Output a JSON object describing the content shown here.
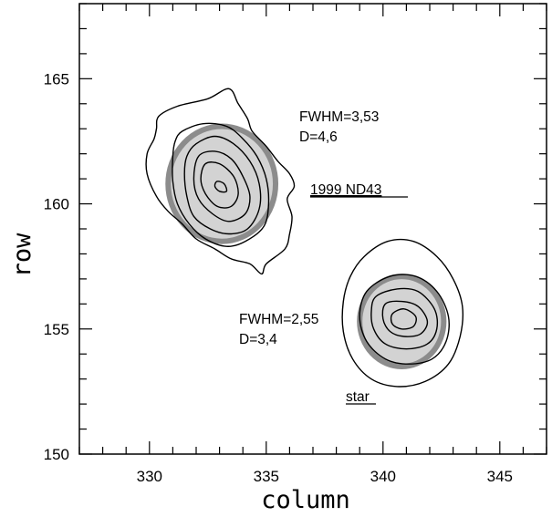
{
  "chart_data": {
    "type": "contour",
    "title": "",
    "xlabel": "column",
    "ylabel": "row",
    "xlim": [
      327,
      347
    ],
    "ylim": [
      150,
      168
    ],
    "x_ticks": [
      330,
      335,
      340,
      345
    ],
    "y_ticks": [
      150,
      155,
      160,
      165
    ],
    "x_tick_labels": [
      "330",
      "335",
      "340",
      "345"
    ],
    "y_tick_labels": [
      "150",
      "155",
      "160",
      "165"
    ],
    "grid": false,
    "sources": [
      {
        "label": "1999 ND43",
        "center": [
          333.1,
          160.8
        ],
        "aperture_radius": 2.3,
        "fwhm_text": "FWHM=3,53",
        "d_text": "D=4,6",
        "contours": [
          [
            [
              330.4,
              163.5
            ],
            [
              331.2,
              163.9
            ],
            [
              332.5,
              164.2
            ],
            [
              333.4,
              164.6
            ],
            [
              333.8,
              164.0
            ],
            [
              334.2,
              163.4
            ],
            [
              334.4,
              162.9
            ],
            [
              335.0,
              162.3
            ],
            [
              335.5,
              161.7
            ],
            [
              336.0,
              161.2
            ],
            [
              336.2,
              160.7
            ],
            [
              335.9,
              160.2
            ],
            [
              336.1,
              159.5
            ],
            [
              336.0,
              158.8
            ],
            [
              335.8,
              158.2
            ],
            [
              335.0,
              157.6
            ],
            [
              334.8,
              157.2
            ],
            [
              334.3,
              157.6
            ],
            [
              333.5,
              157.8
            ],
            [
              332.8,
              158.2
            ],
            [
              332.0,
              158.6
            ],
            [
              331.4,
              159.2
            ],
            [
              330.8,
              159.7
            ],
            [
              330.3,
              160.3
            ],
            [
              329.9,
              161.2
            ],
            [
              329.9,
              162.0
            ],
            [
              330.2,
              162.6
            ],
            [
              330.3,
              163.0
            ]
          ],
          [
            [
              331.4,
              162.9
            ],
            [
              332.3,
              163.2
            ],
            [
              333.3,
              163.1
            ],
            [
              334.0,
              162.6
            ],
            [
              334.6,
              161.9
            ],
            [
              335.0,
              161.0
            ],
            [
              335.1,
              160.0
            ],
            [
              334.9,
              159.1
            ],
            [
              334.1,
              158.5
            ],
            [
              333.3,
              158.3
            ],
            [
              332.4,
              158.6
            ],
            [
              331.7,
              159.2
            ],
            [
              331.2,
              160.0
            ],
            [
              331.0,
              160.9
            ],
            [
              331.0,
              161.9
            ],
            [
              331.1,
              162.5
            ]
          ],
          [
            [
              332.0,
              162.4
            ],
            [
              332.8,
              162.7
            ],
            [
              333.6,
              162.4
            ],
            [
              334.3,
              161.7
            ],
            [
              334.7,
              160.8
            ],
            [
              334.7,
              159.8
            ],
            [
              334.2,
              159.0
            ],
            [
              333.4,
              158.8
            ],
            [
              332.6,
              159.0
            ],
            [
              331.9,
              159.5
            ],
            [
              331.6,
              160.3
            ],
            [
              331.5,
              161.2
            ],
            [
              331.6,
              161.9
            ]
          ],
          [
            [
              332.1,
              161.9
            ],
            [
              332.8,
              162.1
            ],
            [
              333.5,
              161.8
            ],
            [
              334.0,
              161.1
            ],
            [
              334.3,
              160.3
            ],
            [
              334.1,
              159.6
            ],
            [
              333.4,
              159.3
            ],
            [
              332.7,
              159.6
            ],
            [
              332.1,
              160.2
            ],
            [
              331.9,
              161.0
            ]
          ],
          [
            [
              332.4,
              161.6
            ],
            [
              333.0,
              161.6
            ],
            [
              333.6,
              161.1
            ],
            [
              333.8,
              160.4
            ],
            [
              333.5,
              159.9
            ],
            [
              332.9,
              159.9
            ],
            [
              332.4,
              160.4
            ],
            [
              332.2,
              161.0
            ]
          ],
          [
            [
              332.9,
              160.9
            ],
            [
              333.2,
              160.8
            ],
            [
              333.3,
              160.5
            ],
            [
              333.0,
              160.5
            ],
            [
              332.8,
              160.7
            ]
          ]
        ]
      },
      {
        "label": "star",
        "center": [
          340.8,
          155.3
        ],
        "aperture_radius": 1.8,
        "fwhm_text": "FWHM=2,55",
        "d_text": "D=3,4",
        "contours": [
          [
            [
              339.2,
              157.9
            ],
            [
              340.2,
              158.5
            ],
            [
              341.3,
              158.5
            ],
            [
              342.3,
              157.9
            ],
            [
              343.0,
              157.0
            ],
            [
              343.4,
              155.9
            ],
            [
              343.3,
              154.7
            ],
            [
              342.8,
              153.6
            ],
            [
              341.8,
              152.9
            ],
            [
              340.6,
              152.7
            ],
            [
              339.5,
              153.0
            ],
            [
              338.7,
              153.8
            ],
            [
              338.3,
              154.9
            ],
            [
              338.3,
              156.1
            ],
            [
              338.6,
              157.1
            ]
          ],
          [
            [
              339.3,
              156.5
            ],
            [
              340.3,
              157.1
            ],
            [
              341.4,
              157.1
            ],
            [
              342.3,
              156.5
            ],
            [
              342.8,
              155.5
            ],
            [
              342.7,
              154.5
            ],
            [
              342.1,
              153.8
            ],
            [
              341.1,
              153.6
            ],
            [
              340.1,
              153.8
            ],
            [
              339.3,
              154.5
            ],
            [
              339.0,
              155.5
            ]
          ],
          [
            [
              339.7,
              156.3
            ],
            [
              340.6,
              156.6
            ],
            [
              341.5,
              156.5
            ],
            [
              342.2,
              155.8
            ],
            [
              342.3,
              155.0
            ],
            [
              341.9,
              154.4
            ],
            [
              341.0,
              154.2
            ],
            [
              340.1,
              154.4
            ],
            [
              339.6,
              155.0
            ],
            [
              339.5,
              155.7
            ]
          ],
          [
            [
              340.1,
              156.0
            ],
            [
              340.8,
              156.1
            ],
            [
              341.5,
              155.9
            ],
            [
              341.9,
              155.3
            ],
            [
              341.6,
              154.8
            ],
            [
              340.9,
              154.7
            ],
            [
              340.3,
              154.9
            ],
            [
              340.0,
              155.4
            ]
          ],
          [
            [
              340.4,
              155.6
            ],
            [
              340.9,
              155.8
            ],
            [
              341.4,
              155.5
            ],
            [
              341.3,
              155.1
            ],
            [
              340.8,
              155.0
            ],
            [
              340.4,
              155.2
            ]
          ]
        ]
      }
    ]
  }
}
